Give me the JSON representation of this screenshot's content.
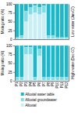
{
  "chart_data": [
    {
      "type": "bar",
      "stacked": true,
      "y_label": "Mixing ratio (%)",
      "y2_label": "Low water (Jun-07)",
      "categories": [
        "P1",
        "P2",
        "P3",
        "P4",
        "P5",
        "P6",
        "P7",
        "P8",
        "P9",
        "P10",
        "P11",
        "P12"
      ],
      "series": [
        {
          "name": "Alluvial",
          "color": "#c8eff5",
          "values": [
            1,
            2,
            50,
            70,
            75,
            70,
            75,
            2,
            2,
            1,
            1,
            1
          ]
        },
        {
          "name": "Alluvial groundwater",
          "color": "#7ddde8",
          "values": [
            4,
            8,
            30,
            20,
            20,
            20,
            20,
            8,
            8,
            4,
            4,
            4
          ]
        },
        {
          "name": "Alluvial water table",
          "color": "#1ab8cc",
          "values": [
            95,
            90,
            20,
            10,
            5,
            10,
            5,
            90,
            90,
            95,
            95,
            95
          ]
        }
      ],
      "ylim": [
        0,
        100
      ],
      "yticks": [
        0,
        25,
        50,
        75,
        100
      ],
      "grid": true,
      "tick_labels": "y"
    },
    {
      "type": "bar",
      "stacked": true,
      "y_label": "Mixing ratio (%)",
      "y2_label": "High water (Dec-07)",
      "categories": [
        "P1",
        "P2",
        "P3",
        "P4",
        "P5",
        "P6",
        "P7",
        "P8",
        "P9",
        "P10",
        "P11",
        "P12"
      ],
      "series": [
        {
          "name": "Alluvial",
          "color": "#c8eff5",
          "values": [
            2,
            2,
            75,
            75,
            2,
            70,
            2,
            2,
            2,
            2,
            2,
            2
          ]
        },
        {
          "name": "Alluvial groundwater",
          "color": "#7ddde8",
          "values": [
            8,
            8,
            20,
            20,
            8,
            20,
            8,
            8,
            8,
            8,
            8,
            8
          ]
        },
        {
          "name": "Alluvial water table",
          "color": "#1ab8cc",
          "values": [
            90,
            90,
            5,
            5,
            90,
            10,
            90,
            90,
            90,
            90,
            90,
            90
          ]
        }
      ],
      "ylim": [
        0,
        100
      ],
      "yticks": [
        0,
        25,
        50,
        75,
        100
      ],
      "grid": true,
      "legend": "bottom"
    }
  ]
}
